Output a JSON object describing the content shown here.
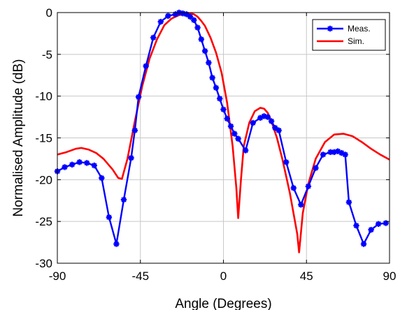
{
  "chart_data": {
    "type": "line",
    "xlabel": "Angle (Degrees)",
    "ylabel": "Normalised Amplitude (dB)",
    "xlim": [
      -90,
      90
    ],
    "ylim": [
      -30,
      0
    ],
    "xticks": [
      -90,
      -45,
      0,
      45,
      90
    ],
    "yticks": [
      0,
      -5,
      -10,
      -15,
      -20,
      -25,
      -30
    ],
    "grid": true,
    "legend_position": "top-right",
    "series": [
      {
        "name": "Meas.",
        "color": "#0000ff",
        "marker": "asterisk",
        "x": [
          -90,
          -86,
          -82,
          -78,
          -74,
          -70,
          -66,
          -62,
          -58,
          -54,
          -50,
          -48,
          -46,
          -42,
          -38,
          -34,
          -30,
          -26,
          -24,
          -22,
          -20,
          -18,
          -16,
          -14,
          -12,
          -10,
          -8,
          -6,
          -4,
          -2,
          0,
          2,
          4,
          6,
          8,
          12,
          16,
          20,
          22,
          24,
          26,
          28,
          30,
          34,
          38,
          42,
          46,
          50,
          54,
          58,
          60,
          62,
          64,
          66,
          68,
          72,
          76,
          80,
          84,
          88
        ],
        "y": [
          -19,
          -18.5,
          -18.2,
          -17.9,
          -18,
          -18.3,
          -19.8,
          -24.5,
          -27.7,
          -22.4,
          -17.4,
          -14.1,
          -10.1,
          -6.4,
          -3,
          -1.1,
          -0.4,
          -0.2,
          0,
          -0.1,
          -0.2,
          -0.5,
          -0.9,
          -1.8,
          -3.2,
          -4.6,
          -6,
          -7.8,
          -9,
          -10.3,
          -11.6,
          -12.7,
          -13.6,
          -14.5,
          -15.1,
          -16.5,
          -13.2,
          -12.6,
          -12.4,
          -12.5,
          -13,
          -13.8,
          -14.1,
          -17.9,
          -21,
          -23,
          -20.8,
          -18.6,
          -17,
          -16.7,
          -16.7,
          -16.6,
          -16.8,
          -17,
          -22.7,
          -25.5,
          -27.7,
          -26,
          -25.3,
          -25.2
        ]
      },
      {
        "name": "Sim.",
        "color": "#ff0000",
        "x": [
          -90,
          -85,
          -80,
          -77,
          -73,
          -69,
          -65,
          -60,
          -57,
          -55,
          -52,
          -48,
          -44,
          -40,
          -36,
          -32,
          -28,
          -24,
          -20,
          -18,
          -16,
          -14,
          -12,
          -10,
          -7,
          -4,
          -1,
          2,
          5,
          7,
          8,
          9.5,
          11,
          14,
          17,
          20,
          22,
          24,
          26,
          29,
          32,
          36,
          40,
          41,
          43,
          46,
          50,
          55,
          60,
          65,
          70,
          75,
          80,
          85,
          90
        ],
        "y": [
          -17,
          -16.7,
          -16.3,
          -16.2,
          -16.4,
          -16.8,
          -17.5,
          -18.8,
          -19.8,
          -19.9,
          -17.5,
          -13,
          -8.8,
          -5.5,
          -3.2,
          -1.5,
          -0.7,
          -0.3,
          -0.1,
          -0.1,
          -0.2,
          -0.5,
          -1,
          -1.6,
          -3,
          -4.8,
          -7.2,
          -10.8,
          -16,
          -21,
          -24.6,
          -20,
          -16,
          -13.2,
          -11.8,
          -11.4,
          -11.5,
          -12,
          -13,
          -15,
          -17.6,
          -21.6,
          -26.5,
          -28.7,
          -24,
          -20.5,
          -17.5,
          -15.5,
          -14.6,
          -14.5,
          -14.8,
          -15.5,
          -16.3,
          -17,
          -17.6
        ]
      }
    ]
  }
}
